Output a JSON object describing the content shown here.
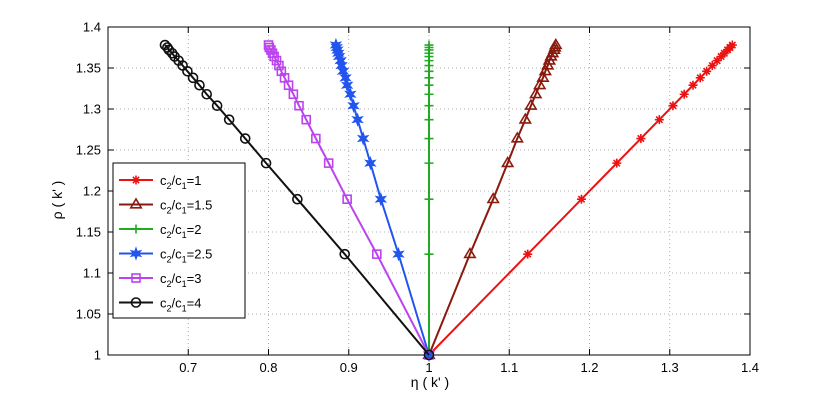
{
  "chart_data": {
    "type": "line",
    "xlabel": "η ( k' )",
    "ylabel": "ρ ( k' )",
    "xlim": [
      0.6,
      1.4
    ],
    "ylim": [
      1.0,
      1.4
    ],
    "xticks": [
      "0.7",
      "0.8",
      "0.9",
      "1",
      "1.1",
      "1.2",
      "1.3",
      "1.4"
    ],
    "yticks": [
      "1",
      "1.05",
      "1.1",
      "1.15",
      "1.2",
      "1.25",
      "1.3",
      "1.35",
      "1.4"
    ],
    "grid": true,
    "legend_position": "left-middle",
    "series": [
      {
        "name": "c2/c1=1",
        "label_base": "c",
        "label_sub1": "2",
        "label_mid": "/c",
        "label_sub2": "1",
        "label_tail": "=1",
        "color": "#ee1111",
        "marker": "asterisk",
        "x": [
          1,
          1.123,
          1.19,
          1.234,
          1.264,
          1.287,
          1.304,
          1.318,
          1.329,
          1.338,
          1.346,
          1.353,
          1.359,
          1.364,
          1.368,
          1.372,
          1.375,
          1.378
        ],
        "y": [
          1,
          1.123,
          1.19,
          1.234,
          1.264,
          1.287,
          1.304,
          1.318,
          1.329,
          1.338,
          1.346,
          1.353,
          1.359,
          1.364,
          1.368,
          1.372,
          1.375,
          1.378
        ]
      },
      {
        "name": "c2/c1=1.5",
        "label_base": "c",
        "label_sub1": "2",
        "label_mid": "/c",
        "label_sub2": "1",
        "label_tail": "=1.5",
        "color": "#8b1a0e",
        "marker": "triangle",
        "x": [
          1,
          1.051,
          1.08,
          1.098,
          1.11,
          1.12,
          1.127,
          1.133,
          1.138,
          1.142,
          1.145,
          1.148,
          1.15,
          1.152,
          1.154,
          1.156,
          1.157,
          1.158
        ],
        "y": [
          1,
          1.123,
          1.19,
          1.234,
          1.264,
          1.287,
          1.304,
          1.318,
          1.329,
          1.338,
          1.346,
          1.353,
          1.359,
          1.364,
          1.368,
          1.372,
          1.375,
          1.378
        ]
      },
      {
        "name": "c2/c1=2",
        "label_base": "c",
        "label_sub1": "2",
        "label_mid": "/c",
        "label_sub2": "1",
        "label_tail": "=2",
        "color": "#22aa22",
        "marker": "plus",
        "x": [
          1,
          1,
          1,
          1,
          1,
          1,
          1,
          1,
          1,
          1,
          1,
          1,
          1,
          1,
          1,
          1,
          1,
          1
        ],
        "y": [
          1,
          1.123,
          1.19,
          1.234,
          1.264,
          1.287,
          1.304,
          1.318,
          1.329,
          1.338,
          1.346,
          1.353,
          1.359,
          1.364,
          1.368,
          1.372,
          1.375,
          1.378
        ]
      },
      {
        "name": "c2/c1=2.5",
        "label_base": "c",
        "label_sub1": "2",
        "label_mid": "/c",
        "label_sub2": "1",
        "label_tail": "=2.5",
        "color": "#2255ee",
        "marker": "star",
        "x": [
          1,
          0.962,
          0.94,
          0.927,
          0.918,
          0.911,
          0.906,
          0.902,
          0.898,
          0.896,
          0.893,
          0.891,
          0.89,
          0.888,
          0.887,
          0.886,
          0.885,
          0.884
        ],
        "y": [
          1,
          1.123,
          1.19,
          1.234,
          1.264,
          1.287,
          1.304,
          1.318,
          1.329,
          1.338,
          1.346,
          1.353,
          1.359,
          1.364,
          1.368,
          1.372,
          1.375,
          1.378
        ]
      },
      {
        "name": "c2/c1=3",
        "label_base": "c",
        "label_sub1": "2",
        "label_mid": "/c",
        "label_sub2": "1",
        "label_tail": "=3",
        "color": "#bb44ee",
        "marker": "square",
        "x": [
          1,
          0.935,
          0.898,
          0.875,
          0.859,
          0.847,
          0.838,
          0.831,
          0.825,
          0.82,
          0.816,
          0.813,
          0.81,
          0.807,
          0.805,
          0.803,
          0.801,
          0.8
        ],
        "y": [
          1,
          1.123,
          1.19,
          1.234,
          1.264,
          1.287,
          1.304,
          1.318,
          1.329,
          1.338,
          1.346,
          1.353,
          1.359,
          1.364,
          1.368,
          1.372,
          1.375,
          1.378
        ]
      },
      {
        "name": "c2/c1=4",
        "label_base": "c",
        "label_sub1": "2",
        "label_mid": "/c",
        "label_sub2": "1",
        "label_tail": "=4",
        "color": "#111111",
        "marker": "circle",
        "x": [
          1,
          0.895,
          0.836,
          0.797,
          0.771,
          0.751,
          0.736,
          0.723,
          0.714,
          0.706,
          0.699,
          0.693,
          0.688,
          0.683,
          0.68,
          0.676,
          0.674,
          0.671
        ],
        "y": [
          1,
          1.123,
          1.19,
          1.234,
          1.264,
          1.287,
          1.304,
          1.318,
          1.329,
          1.338,
          1.346,
          1.353,
          1.359,
          1.364,
          1.368,
          1.372,
          1.375,
          1.378
        ]
      }
    ]
  }
}
